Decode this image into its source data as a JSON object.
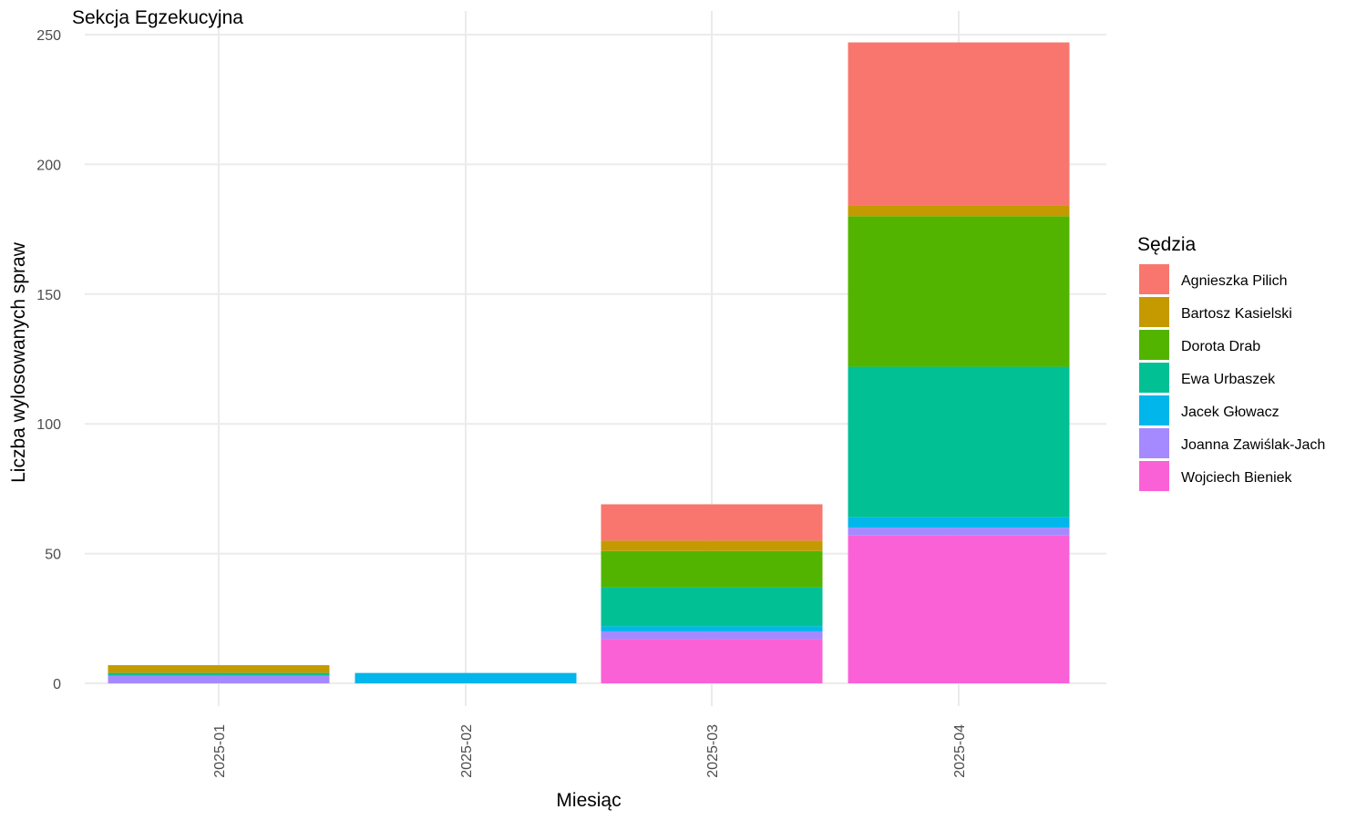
{
  "chart_data": {
    "type": "bar",
    "stacked": true,
    "title": "Sekcja Egzekucyjna",
    "xlabel": "Miesiąc",
    "ylabel": "Liczba wylosowanych spraw",
    "ylim": [
      0,
      250
    ],
    "yticks": [
      0,
      50,
      100,
      150,
      200,
      250
    ],
    "grid": true,
    "legend_title": "Sędzia",
    "legend_position": "right",
    "categories": [
      "2025-01",
      "2025-02",
      "2025-03",
      "2025-04"
    ],
    "series": [
      {
        "name": "Agnieszka Pilich",
        "color": "#F8766D",
        "values": [
          0,
          0,
          14,
          63
        ]
      },
      {
        "name": "Bartosz Kasielski",
        "color": "#C49A00",
        "values": [
          3,
          0,
          4,
          4
        ]
      },
      {
        "name": "Dorota Drab",
        "color": "#53B400",
        "values": [
          0,
          0,
          14,
          58
        ]
      },
      {
        "name": "Ewa Urbaszek",
        "color": "#00C094",
        "values": [
          1,
          0,
          15,
          58
        ]
      },
      {
        "name": "Jacek Głowacz",
        "color": "#00B6EB",
        "values": [
          0,
          4,
          2,
          4
        ]
      },
      {
        "name": "Joanna Zawiślak-Jach",
        "color": "#A58AFF",
        "values": [
          3,
          0,
          3,
          3
        ]
      },
      {
        "name": "Wojciech Bieniek",
        "color": "#FB61D7",
        "values": [
          0,
          0,
          17,
          57
        ]
      }
    ]
  }
}
